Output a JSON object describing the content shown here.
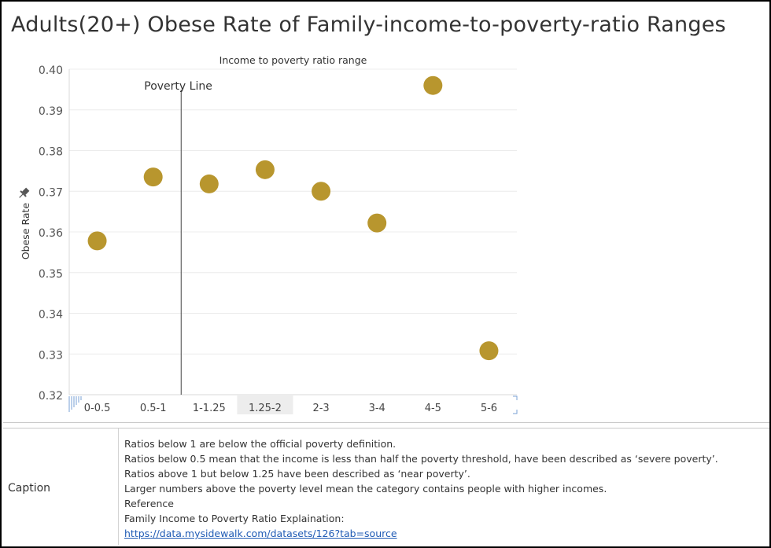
{
  "title": "Adults(20+) Obese Rate  of Family-income-to-poverty-ratio Ranges",
  "chart_data": {
    "type": "scatter",
    "title": "Income to poverty ratio range",
    "xlabel": "",
    "ylabel": "Obese Rate",
    "categories": [
      "0-0.5",
      "0.5-1",
      "1-1.25",
      "1.25-2",
      "2-3",
      "3-4",
      "4-5",
      "5-6"
    ],
    "values": [
      0.3578,
      0.3735,
      0.3718,
      0.3753,
      0.37,
      0.3622,
      0.396,
      0.3308
    ],
    "ylim": [
      0.32,
      0.4
    ],
    "yticks": [
      "0.40",
      "0.39",
      "0.38",
      "0.37",
      "0.36",
      "0.35",
      "0.34",
      "0.33",
      "0.32"
    ],
    "ytick_values": [
      0.4,
      0.39,
      0.38,
      0.37,
      0.36,
      0.35,
      0.34,
      0.33,
      0.32
    ],
    "highlighted_category": "1.25-2",
    "reference_line": {
      "label": "Poverty Line",
      "between_categories": [
        "0.5-1",
        "1-1.25"
      ]
    },
    "marker_color": "#B8962E",
    "grid": true
  },
  "caption": {
    "label": "Caption",
    "lines": [
      "Ratios below 1  are below the official poverty definition.",
      "Ratios below 0.5  mean that the income is less than half the poverty threshold, have been described as ‘severe poverty’.",
      "Ratios above 1  but below 1.25  have been described as ‘near poverty’.",
      "Larger numbers above the poverty level mean the category contains people with higher incomes.",
      "Reference",
      "Family Income to Poverty Ratio Explaination:"
    ],
    "link": "https://data.mysidewalk.com/datasets/126?tab=source"
  },
  "icons": {
    "pin": "pin-icon"
  }
}
